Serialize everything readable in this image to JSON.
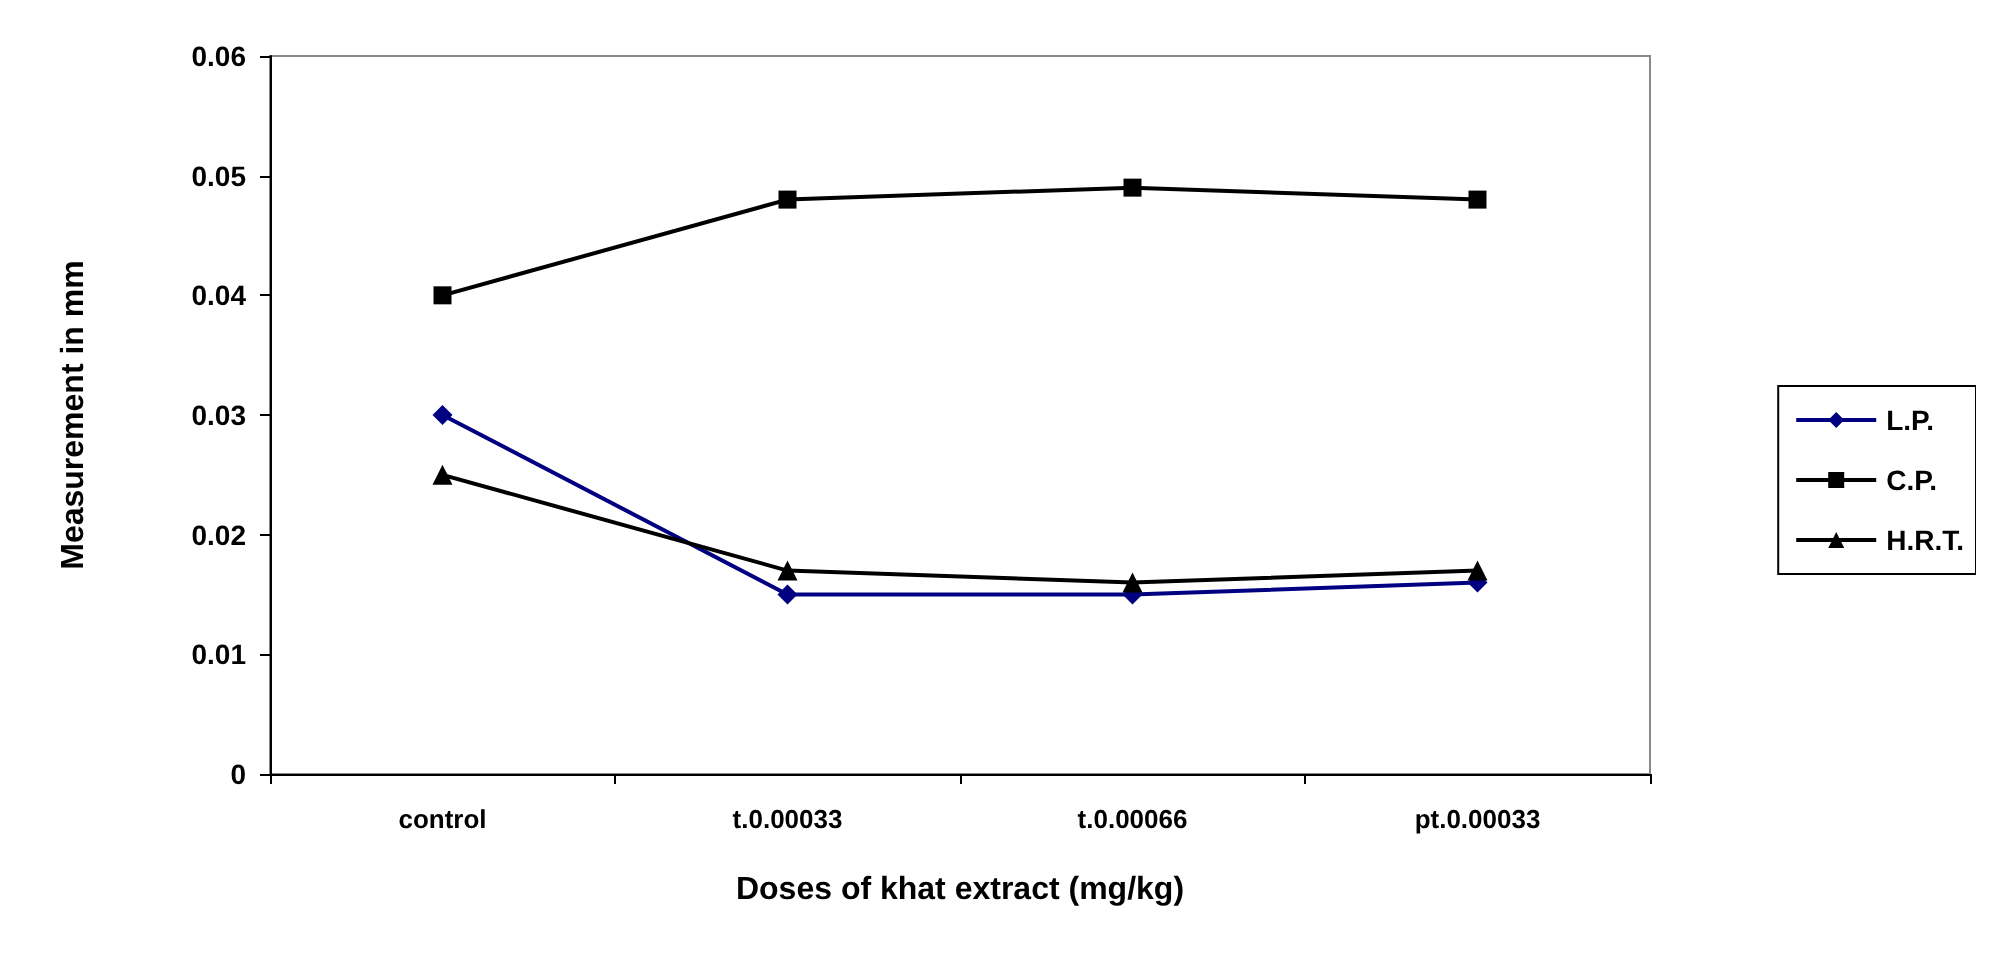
{
  "chart_data": {
    "type": "line",
    "xlabel": "Doses of khat extract (mg/kg)",
    "ylabel": "Measurement in mm",
    "categories": [
      "control",
      "t.0.00033",
      "t.0.00066",
      "pt.0.00033"
    ],
    "series": [
      {
        "name": "L.P.",
        "color": "#000080",
        "marker": "diamond",
        "values": [
          0.03,
          0.015,
          0.015,
          0.016
        ]
      },
      {
        "name": "C.P.",
        "color": "#000000",
        "marker": "square",
        "values": [
          0.04,
          0.048,
          0.049,
          0.048
        ]
      },
      {
        "name": "H.R.T.",
        "color": "#000000",
        "marker": "triangle",
        "values": [
          0.025,
          0.017,
          0.016,
          0.017
        ]
      }
    ],
    "ylim": [
      0,
      0.06
    ],
    "yticks": [
      0,
      0.01,
      0.02,
      0.03,
      0.04,
      0.05,
      0.06
    ],
    "grid": false,
    "legend": "right",
    "line_style": "solid"
  }
}
